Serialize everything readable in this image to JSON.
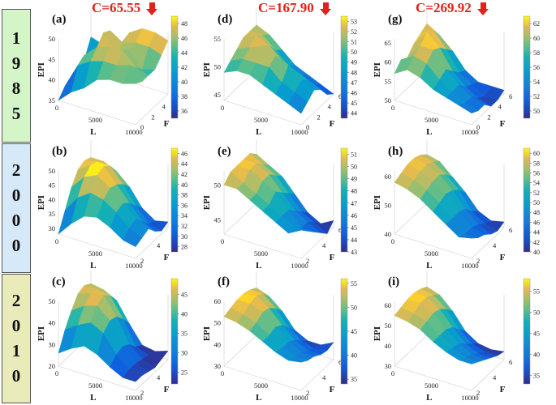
{
  "rows": [
    {
      "year_label": "1985",
      "box_color": "#d4f5c8"
    },
    {
      "year_label": "2000",
      "box_color": "#d6e9f8"
    },
    {
      "year_label": "2010",
      "box_color": "#e9ebbb"
    }
  ],
  "columns": [
    {
      "c_label": "C=65.55"
    },
    {
      "c_label": "C=167.90"
    },
    {
      "c_label": "C=269.92"
    }
  ],
  "accent_color": "#e0211c",
  "colormap": "parula",
  "chart_data": [
    {
      "type": "surface3d",
      "id": "a",
      "panel_label": "(a)",
      "zlabel": "EPI",
      "xlabel": "L",
      "ylabel": "F",
      "z_ticks": [
        "50",
        "45",
        "40",
        "35"
      ],
      "x_ticks": [
        "0",
        "5000",
        "10000"
      ],
      "y_ticks": [
        "0",
        "2",
        "4",
        "6"
      ],
      "colorbar_ticks": [
        "48",
        "46",
        "44",
        "42",
        "40",
        "38",
        "36"
      ],
      "zlim": [
        35,
        50
      ],
      "color_range": [
        35,
        49
      ],
      "z_grid": [
        [
          35,
          37,
          38,
          38,
          39,
          43
        ],
        [
          38,
          43,
          44,
          41,
          42,
          42
        ],
        [
          40,
          45,
          47,
          49,
          48,
          42
        ],
        [
          43,
          46,
          48,
          45,
          46,
          47
        ],
        [
          44,
          46,
          48,
          47,
          47,
          49
        ],
        [
          44,
          47,
          45,
          43,
          47,
          49
        ],
        [
          45,
          44,
          44,
          44,
          46,
          48
        ]
      ]
    },
    {
      "type": "surface3d",
      "id": "d",
      "panel_label": "(d)",
      "zlabel": "EPI",
      "xlabel": "L",
      "ylabel": "F",
      "z_ticks": [
        "55",
        "50",
        "45"
      ],
      "x_ticks": [
        "0",
        "5000",
        "10000"
      ],
      "y_ticks": [
        "0",
        "2",
        "4",
        "6"
      ],
      "colorbar_ticks": [
        "53",
        "52",
        "51",
        "50",
        "49",
        "48",
        "47",
        "46",
        "45",
        "44"
      ],
      "zlim": [
        44,
        55
      ],
      "color_range": [
        43.5,
        53.5
      ],
      "z_grid": [
        [
          49,
          50,
          51,
          52,
          52,
          52
        ],
        [
          50,
          51,
          52,
          53,
          52,
          51
        ],
        [
          50,
          51,
          53,
          52,
          50,
          49
        ],
        [
          49,
          51,
          52,
          50,
          48,
          47
        ],
        [
          48,
          49,
          51,
          49,
          47,
          46
        ],
        [
          47,
          48,
          49,
          48,
          46,
          45
        ],
        [
          46,
          47,
          48,
          47,
          45,
          44
        ]
      ]
    },
    {
      "type": "surface3d",
      "id": "g",
      "panel_label": "(g)",
      "zlabel": "EPI",
      "xlabel": "L",
      "ylabel": "F",
      "z_ticks": [
        "65",
        "60",
        "55",
        "50"
      ],
      "x_ticks": [
        "0",
        "5000",
        "10000"
      ],
      "y_ticks": [
        "0",
        "2",
        "4",
        "6"
      ],
      "colorbar_ticks": [
        "62",
        "60",
        "58",
        "56",
        "54",
        "52",
        "50"
      ],
      "zlim": [
        50,
        66
      ],
      "color_range": [
        49,
        63
      ],
      "z_grid": [
        [
          57,
          59,
          58,
          60,
          61,
          62
        ],
        [
          59,
          61,
          62,
          64,
          63,
          60
        ],
        [
          58,
          60,
          62,
          61,
          59,
          57
        ],
        [
          56,
          57,
          58,
          56,
          54,
          53
        ],
        [
          55,
          55,
          55,
          53,
          52,
          51
        ],
        [
          54,
          53,
          53,
          51,
          50,
          51
        ],
        [
          53,
          52,
          52,
          50,
          50,
          51
        ]
      ]
    },
    {
      "type": "surface3d",
      "id": "b",
      "panel_label": "(b)",
      "zlabel": "EPI",
      "xlabel": "L",
      "ylabel": "F",
      "z_ticks": [
        "50",
        "45",
        "40",
        "35",
        "30"
      ],
      "x_ticks": [
        "0",
        "5000",
        "10000"
      ],
      "y_ticks": [
        "2",
        "4",
        "6"
      ],
      "colorbar_ticks": [
        "46",
        "44",
        "42",
        "40",
        "38",
        "36",
        "34",
        "32",
        "30",
        "28"
      ],
      "zlim": [
        28,
        50
      ],
      "color_range": [
        27,
        47
      ],
      "z_grid": [
        [
          28,
          34,
          40,
          44,
          45,
          44
        ],
        [
          33,
          40,
          45,
          47,
          46,
          44
        ],
        [
          37,
          43,
          47,
          48,
          46,
          42
        ],
        [
          38,
          42,
          44,
          43,
          41,
          38
        ],
        [
          36,
          39,
          40,
          38,
          35,
          32
        ],
        [
          33,
          35,
          36,
          33,
          30,
          29
        ],
        [
          32,
          33,
          34,
          31,
          29,
          30
        ]
      ]
    },
    {
      "type": "surface3d",
      "id": "e",
      "panel_label": "(e)",
      "zlabel": "EPI",
      "xlabel": "L",
      "ylabel": "F",
      "z_ticks": [
        "50",
        "45"
      ],
      "x_ticks": [
        "0",
        "5000",
        "10000"
      ],
      "y_ticks": [
        "2",
        "4",
        "6"
      ],
      "colorbar_ticks": [
        "51",
        "50",
        "49",
        "48",
        "47",
        "46",
        "45",
        "44",
        "43"
      ],
      "zlim": [
        43,
        52
      ],
      "color_range": [
        43,
        51.5
      ],
      "z_grid": [
        [
          50,
          51,
          51,
          51,
          51,
          50
        ],
        [
          50,
          50,
          51,
          51,
          50,
          49
        ],
        [
          49,
          49,
          50,
          50,
          49,
          48
        ],
        [
          48,
          48,
          49,
          48,
          47,
          46
        ],
        [
          47,
          47,
          47,
          46,
          45,
          44
        ],
        [
          46,
          46,
          45,
          45,
          44,
          43
        ],
        [
          47,
          46,
          45,
          44,
          43,
          44
        ]
      ]
    },
    {
      "type": "surface3d",
      "id": "h",
      "panel_label": "(h)",
      "zlabel": "EPI",
      "xlabel": "L",
      "ylabel": "F",
      "z_ticks": [
        "60",
        "50",
        "40"
      ],
      "x_ticks": [
        "0",
        "5000",
        "10000"
      ],
      "y_ticks": [
        "2",
        "4",
        "6"
      ],
      "colorbar_ticks": [
        "60",
        "58",
        "56",
        "54",
        "52",
        "50",
        "48",
        "46",
        "44",
        "42",
        "40"
      ],
      "zlim": [
        40,
        62
      ],
      "color_range": [
        40,
        61
      ],
      "z_grid": [
        [
          58,
          59,
          60,
          60,
          59,
          57
        ],
        [
          57,
          58,
          59,
          59,
          58,
          56
        ],
        [
          55,
          56,
          57,
          57,
          55,
          52
        ],
        [
          52,
          53,
          54,
          53,
          51,
          48
        ],
        [
          49,
          49,
          49,
          48,
          45,
          43
        ],
        [
          46,
          45,
          45,
          44,
          42,
          41
        ],
        [
          47,
          45,
          44,
          42,
          41,
          42
        ]
      ]
    },
    {
      "type": "surface3d",
      "id": "c",
      "panel_label": "(c)",
      "zlabel": "EPI",
      "xlabel": "L",
      "ylabel": "F",
      "z_ticks": [
        "50",
        "40",
        "30",
        "20"
      ],
      "x_ticks": [
        "0",
        "5000",
        "10000"
      ],
      "y_ticks": [
        "2",
        "4",
        "6"
      ],
      "colorbar_ticks": [
        "45",
        "40",
        "35",
        "30",
        "25"
      ],
      "zlim": [
        20,
        50
      ],
      "color_range": [
        22,
        49
      ],
      "z_grid": [
        [
          26,
          34,
          40,
          45,
          46,
          44
        ],
        [
          30,
          38,
          44,
          47,
          46,
          43
        ],
        [
          33,
          41,
          46,
          48,
          45,
          40
        ],
        [
          31,
          38,
          41,
          40,
          36,
          31
        ],
        [
          27,
          30,
          31,
          29,
          25,
          23
        ],
        [
          24,
          25,
          25,
          24,
          23,
          22
        ],
        [
          24,
          24,
          23,
          22,
          23,
          24
        ]
      ]
    },
    {
      "type": "surface3d",
      "id": "f",
      "panel_label": "(f)",
      "zlabel": "EPI",
      "xlabel": "L",
      "ylabel": "F",
      "z_ticks": [
        "60",
        "50",
        "40",
        "30"
      ],
      "x_ticks": [
        "0",
        "5000",
        "10000"
      ],
      "y_ticks": [
        "2",
        "4",
        "6"
      ],
      "colorbar_ticks": [
        "55",
        "50",
        "45",
        "40",
        "35"
      ],
      "zlim": [
        30,
        60
      ],
      "color_range": [
        34,
        56
      ],
      "z_grid": [
        [
          53,
          54,
          55,
          55,
          54,
          52
        ],
        [
          52,
          53,
          55,
          56,
          54,
          50
        ],
        [
          50,
          51,
          53,
          52,
          49,
          45
        ],
        [
          47,
          47,
          48,
          46,
          42,
          38
        ],
        [
          44,
          43,
          43,
          41,
          38,
          35
        ],
        [
          42,
          41,
          40,
          38,
          36,
          35
        ],
        [
          43,
          41,
          40,
          38,
          37,
          38
        ]
      ]
    },
    {
      "type": "surface3d",
      "id": "i",
      "panel_label": "(i)",
      "zlabel": "EPI",
      "xlabel": "L",
      "ylabel": "F",
      "z_ticks": [
        "60",
        "50",
        "40",
        "30"
      ],
      "x_ticks": [
        "0",
        "5000",
        "10000"
      ],
      "y_ticks": [
        "2",
        "4",
        "6"
      ],
      "colorbar_ticks": [
        "55",
        "50",
        "45",
        "40",
        "35"
      ],
      "zlim": [
        30,
        62
      ],
      "color_range": [
        33,
        58
      ],
      "z_grid": [
        [
          55,
          56,
          57,
          57,
          56,
          54
        ],
        [
          54,
          55,
          57,
          57,
          55,
          52
        ],
        [
          52,
          53,
          54,
          53,
          50,
          46
        ],
        [
          48,
          48,
          48,
          46,
          42,
          38
        ],
        [
          45,
          44,
          43,
          40,
          37,
          34
        ],
        [
          43,
          41,
          40,
          37,
          35,
          33
        ],
        [
          43,
          41,
          39,
          37,
          35,
          34
        ]
      ]
    }
  ]
}
